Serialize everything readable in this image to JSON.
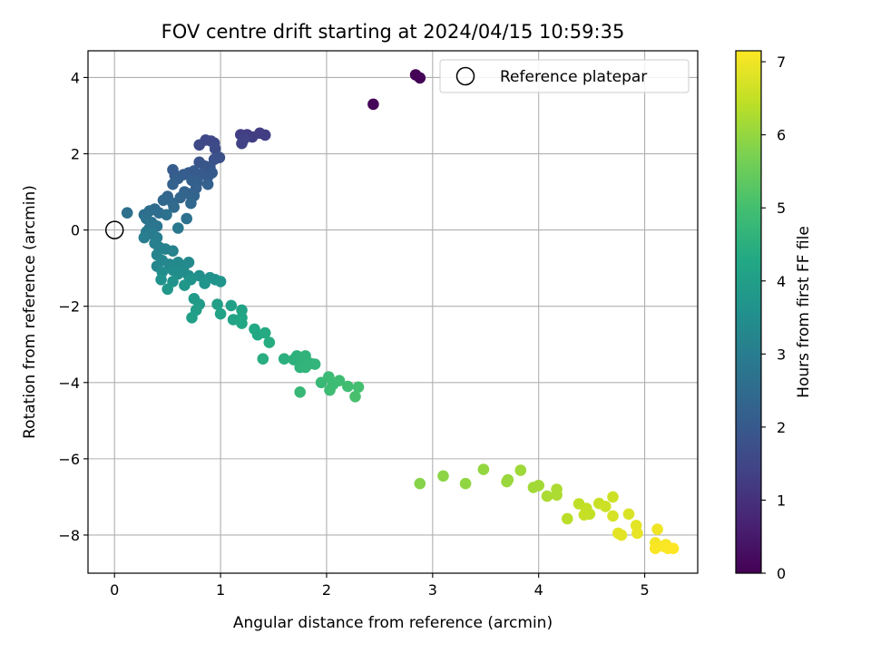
{
  "chart_data": {
    "type": "scatter",
    "title": "FOV centre drift starting at 2024/04/15 10:59:35",
    "xlabel": "Angular distance from reference (arcmin)",
    "ylabel": "Rotation from reference (arcmin)",
    "xlim": [
      -0.25,
      5.5
    ],
    "ylim": [
      -9.0,
      4.7
    ],
    "x_ticks": [
      0,
      1,
      2,
      3,
      4,
      5
    ],
    "x_tick_labels": [
      "0",
      "1",
      "2",
      "3",
      "4",
      "5"
    ],
    "y_ticks": [
      -8,
      -6,
      -4,
      -2,
      0,
      2,
      4
    ],
    "y_tick_labels": [
      "−8",
      "−6",
      "−4",
      "−2",
      "0",
      "2",
      "4"
    ],
    "grid": true,
    "legend": {
      "placement": "top-right",
      "entries": [
        "Reference platepar"
      ]
    },
    "reference_point": {
      "x": 0,
      "y": 0
    },
    "colorbar": {
      "label": "Hours from first FF file",
      "range": [
        0,
        7.15
      ],
      "ticks": [
        0,
        1,
        2,
        3,
        4,
        5,
        6,
        7
      ],
      "tick_labels": [
        "0",
        "1",
        "2",
        "3",
        "4",
        "5",
        "6",
        "7"
      ],
      "colormap": "viridis"
    },
    "points": [
      [
        2.84,
        4.07,
        0.02
      ],
      [
        2.88,
        3.99,
        0.05
      ],
      [
        2.44,
        3.3,
        0.1
      ],
      [
        1.19,
        2.5,
        1.3
      ],
      [
        1.25,
        2.5,
        1.3
      ],
      [
        1.3,
        2.44,
        1.3
      ],
      [
        1.37,
        2.54,
        1.3
      ],
      [
        1.42,
        2.49,
        1.3
      ],
      [
        1.2,
        2.27,
        1.4
      ],
      [
        1.22,
        2.38,
        1.4
      ],
      [
        0.86,
        2.36,
        1.55
      ],
      [
        0.91,
        2.33,
        1.55
      ],
      [
        0.94,
        2.28,
        1.55
      ],
      [
        0.8,
        2.23,
        1.6
      ],
      [
        0.95,
        2.13,
        1.65
      ],
      [
        0.99,
        1.9,
        1.75
      ],
      [
        0.94,
        1.85,
        1.8
      ],
      [
        0.8,
        1.78,
        1.85
      ],
      [
        0.85,
        1.68,
        1.9
      ],
      [
        0.9,
        1.65,
        1.9
      ],
      [
        0.92,
        1.5,
        2.0
      ],
      [
        0.88,
        1.4,
        2.0
      ],
      [
        0.82,
        1.45,
        2.05
      ],
      [
        0.75,
        1.55,
        2.05
      ],
      [
        0.7,
        1.5,
        2.05
      ],
      [
        0.65,
        1.45,
        2.1
      ],
      [
        0.55,
        1.58,
        2.1
      ],
      [
        0.57,
        1.43,
        2.1
      ],
      [
        0.6,
        1.35,
        2.15
      ],
      [
        0.73,
        1.3,
        2.15
      ],
      [
        0.78,
        1.25,
        2.15
      ],
      [
        0.88,
        1.2,
        2.2
      ],
      [
        0.77,
        1.1,
        2.2
      ],
      [
        0.55,
        1.2,
        2.2
      ],
      [
        0.66,
        1.0,
        2.3
      ],
      [
        0.7,
        0.95,
        2.3
      ],
      [
        0.75,
        0.9,
        2.3
      ],
      [
        0.62,
        0.85,
        2.35
      ],
      [
        0.5,
        0.88,
        2.35
      ],
      [
        0.46,
        0.78,
        2.4
      ],
      [
        0.55,
        0.7,
        2.4
      ],
      [
        0.72,
        0.7,
        2.4
      ],
      [
        0.56,
        0.6,
        2.45
      ],
      [
        0.38,
        0.55,
        2.5
      ],
      [
        0.33,
        0.5,
        2.55
      ],
      [
        0.42,
        0.45,
        2.55
      ],
      [
        0.12,
        0.45,
        2.6
      ],
      [
        0.28,
        0.4,
        2.6
      ],
      [
        0.49,
        0.4,
        2.65
      ],
      [
        0.68,
        0.3,
        2.7
      ],
      [
        0.3,
        0.3,
        2.7
      ],
      [
        0.35,
        0.2,
        2.75
      ],
      [
        0.4,
        0.1,
        2.8
      ],
      [
        0.33,
        0.05,
        2.8
      ],
      [
        0.6,
        0.05,
        2.85
      ],
      [
        0.3,
        -0.05,
        2.9
      ],
      [
        0.35,
        -0.1,
        2.95
      ],
      [
        0.28,
        -0.2,
        3.0
      ],
      [
        0.4,
        -0.2,
        3.0
      ],
      [
        0.38,
        -0.35,
        3.05
      ],
      [
        0.42,
        -0.45,
        3.1
      ],
      [
        0.48,
        -0.5,
        3.1
      ],
      [
        0.55,
        -0.55,
        3.15
      ],
      [
        0.4,
        -0.65,
        3.2
      ],
      [
        0.45,
        -0.8,
        3.25
      ],
      [
        0.4,
        -0.95,
        3.3
      ],
      [
        0.52,
        -0.9,
        3.3
      ],
      [
        0.6,
        -0.85,
        3.35
      ],
      [
        0.7,
        -0.85,
        3.35
      ],
      [
        0.65,
        -1.0,
        3.4
      ],
      [
        0.55,
        -1.05,
        3.4
      ],
      [
        0.45,
        -1.1,
        3.45
      ],
      [
        0.6,
        -1.15,
        3.5
      ],
      [
        0.7,
        -1.2,
        3.5
      ],
      [
        0.8,
        -1.2,
        3.55
      ],
      [
        0.9,
        -1.25,
        3.6
      ],
      [
        0.95,
        -1.3,
        3.6
      ],
      [
        0.44,
        -1.3,
        3.6
      ],
      [
        0.55,
        -1.35,
        3.65
      ],
      [
        0.72,
        -1.3,
        3.65
      ],
      [
        0.85,
        -1.4,
        3.7
      ],
      [
        1.0,
        -1.35,
        3.7
      ],
      [
        0.5,
        -1.55,
        3.75
      ],
      [
        0.66,
        -1.45,
        3.75
      ],
      [
        0.75,
        -1.8,
        3.85
      ],
      [
        0.8,
        -1.95,
        3.9
      ],
      [
        0.77,
        -2.1,
        3.95
      ],
      [
        0.73,
        -2.3,
        4.0
      ],
      [
        0.97,
        -1.95,
        4.0
      ],
      [
        1.1,
        -1.98,
        4.05
      ],
      [
        1.0,
        -2.2,
        4.1
      ],
      [
        1.12,
        -2.35,
        4.15
      ],
      [
        1.2,
        -2.1,
        4.15
      ],
      [
        1.2,
        -2.3,
        4.2
      ],
      [
        1.2,
        -2.45,
        4.25
      ],
      [
        1.32,
        -2.6,
        4.3
      ],
      [
        1.35,
        -2.75,
        4.3
      ],
      [
        1.42,
        -2.7,
        4.35
      ],
      [
        1.46,
        -2.95,
        4.4
      ],
      [
        1.4,
        -3.38,
        4.45
      ],
      [
        1.6,
        -3.38,
        4.5
      ],
      [
        1.69,
        -3.4,
        4.55
      ],
      [
        1.72,
        -3.3,
        4.55
      ],
      [
        1.77,
        -3.45,
        4.6
      ],
      [
        1.8,
        -3.3,
        4.6
      ],
      [
        1.75,
        -3.6,
        4.6
      ],
      [
        1.85,
        -3.5,
        4.65
      ],
      [
        1.8,
        -3.6,
        4.65
      ],
      [
        1.89,
        -3.52,
        4.65
      ],
      [
        1.75,
        -4.25,
        4.75
      ],
      [
        1.95,
        -4.0,
        4.8
      ],
      [
        2.02,
        -3.85,
        4.85
      ],
      [
        2.06,
        -4.05,
        4.85
      ],
      [
        2.03,
        -4.2,
        4.9
      ],
      [
        2.12,
        -3.95,
        4.9
      ],
      [
        2.2,
        -4.1,
        4.95
      ],
      [
        2.3,
        -4.12,
        5.0
      ],
      [
        2.27,
        -4.37,
        5.05
      ],
      [
        2.88,
        -6.65,
        5.85
      ],
      [
        3.1,
        -6.45,
        5.9
      ],
      [
        3.31,
        -6.65,
        5.95
      ],
      [
        3.48,
        -6.28,
        6.0
      ],
      [
        3.7,
        -6.6,
        6.05
      ],
      [
        3.71,
        -6.55,
        6.05
      ],
      [
        3.83,
        -6.3,
        6.1
      ],
      [
        3.95,
        -6.75,
        6.15
      ],
      [
        4.0,
        -6.7,
        6.15
      ],
      [
        4.08,
        -6.98,
        6.25
      ],
      [
        4.17,
        -6.8,
        6.25
      ],
      [
        4.17,
        -6.95,
        6.25
      ],
      [
        4.27,
        -7.57,
        6.4
      ],
      [
        4.38,
        -7.18,
        6.45
      ],
      [
        4.45,
        -7.3,
        6.5
      ],
      [
        4.48,
        -7.45,
        6.5
      ],
      [
        4.43,
        -7.47,
        6.55
      ],
      [
        4.57,
        -7.17,
        6.55
      ],
      [
        4.63,
        -7.25,
        6.6
      ],
      [
        4.7,
        -7.0,
        6.6
      ],
      [
        4.7,
        -7.5,
        6.7
      ],
      [
        4.85,
        -7.45,
        6.75
      ],
      [
        4.75,
        -7.95,
        6.85
      ],
      [
        4.78,
        -8.0,
        6.85
      ],
      [
        4.92,
        -7.75,
        6.85
      ],
      [
        4.93,
        -7.95,
        6.9
      ],
      [
        5.12,
        -7.85,
        7.0
      ],
      [
        5.1,
        -8.2,
        7.05
      ],
      [
        5.2,
        -8.25,
        7.05
      ],
      [
        5.1,
        -8.35,
        7.1
      ],
      [
        5.18,
        -8.3,
        7.1
      ],
      [
        5.22,
        -8.35,
        7.12
      ],
      [
        5.27,
        -8.35,
        7.15
      ]
    ]
  }
}
